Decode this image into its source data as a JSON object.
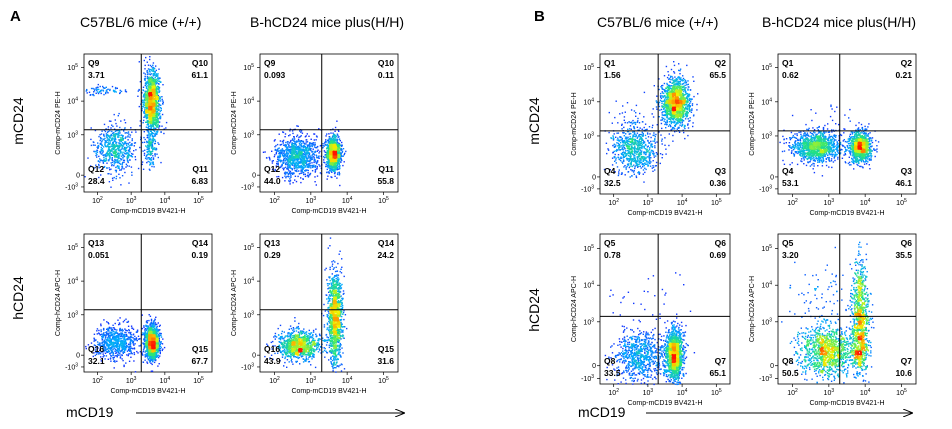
{
  "panels": [
    {
      "letter": "A"
    },
    {
      "letter": "B"
    }
  ],
  "column_titles": {
    "a_left": "C57BL/6 mice (+/+)",
    "a_right": "B-hCD24 mice plus(H/H)",
    "b_left": "C57BL/6 mice (+/+)",
    "b_right": "B-hCD24 mice plus(H/H)"
  },
  "row_labels": {
    "a_top": "mCD24",
    "a_bottom": "hCD24",
    "b_top": "mCD24",
    "b_bottom": "hCD24"
  },
  "x_axis_arrow_label": {
    "a": "mCD19",
    "b": "mCD19"
  },
  "colors": {
    "density_low": "#1010ff",
    "density_mid": "#00c8ff",
    "density_mid2": "#40ff40",
    "density_high": "#ffff00",
    "density_peak": "#ff2000",
    "gate_line": "#000000"
  },
  "chart_data": [
    {
      "type": "scatter",
      "subtype": "flow-cytometry-density",
      "panel": "A",
      "column": "C57BL/6 mice (+/+)",
      "row": "mCD24",
      "xlabel": "Comp-mCD19 BV421-H",
      "ylabel": "Comp-mCD24 PE-H",
      "x_ticks": [
        "10^2",
        "10^3",
        "10^4",
        "10^5"
      ],
      "y_ticks": [
        "-10^3",
        "0",
        "10^3",
        "10^4",
        "10^5"
      ],
      "quadrants": [
        {
          "name": "Q9",
          "value": "3.71",
          "pos": "top-left"
        },
        {
          "name": "Q10",
          "value": "61.1",
          "pos": "top-right"
        },
        {
          "name": "Q11",
          "value": "6.83",
          "pos": "bottom-right"
        },
        {
          "name": "Q12",
          "value": "28.4",
          "pos": "bottom-left"
        }
      ],
      "clusters": [
        {
          "x": 3.6,
          "y": 4.0,
          "spread": [
            0.12,
            0.45
          ],
          "weight": 0.61
        },
        {
          "x": 2.5,
          "y": 2.6,
          "spread": [
            0.3,
            0.35
          ],
          "weight": 0.28
        },
        {
          "x": 2.1,
          "y": 4.35,
          "spread": [
            0.45,
            0.07
          ],
          "weight": 0.04
        },
        {
          "x": 3.55,
          "y": 2.6,
          "spread": [
            0.1,
            0.3
          ],
          "weight": 0.07
        }
      ]
    },
    {
      "type": "scatter",
      "subtype": "flow-cytometry-density",
      "panel": "A",
      "column": "B-hCD24 mice plus(H/H)",
      "row": "mCD24",
      "xlabel": "Comp-mCD19 BV421-H",
      "ylabel": "Comp-mCD24 PE-H",
      "x_ticks": [
        "10^2",
        "10^3",
        "10^4",
        "10^5"
      ],
      "y_ticks": [
        "-10^3",
        "0",
        "10^3",
        "10^4",
        "10^5"
      ],
      "quadrants": [
        {
          "name": "Q9",
          "value": "0.093",
          "pos": "top-left"
        },
        {
          "name": "Q10",
          "value": "0.11",
          "pos": "top-right"
        },
        {
          "name": "Q11",
          "value": "55.8",
          "pos": "bottom-right"
        },
        {
          "name": "Q12",
          "value": "44.0",
          "pos": "bottom-left"
        }
      ],
      "clusters": [
        {
          "x": 2.6,
          "y": 2.4,
          "spread": [
            0.3,
            0.3
          ],
          "weight": 0.44
        },
        {
          "x": 3.6,
          "y": 2.45,
          "spread": [
            0.1,
            0.25
          ],
          "weight": 0.56
        }
      ]
    },
    {
      "type": "scatter",
      "subtype": "flow-cytometry-density",
      "panel": "A",
      "column": "C57BL/6 mice (+/+)",
      "row": "hCD24",
      "xlabel": "Comp-mCD19 BV421-H",
      "ylabel": "Comp-hCD24 APC-H",
      "x_ticks": [
        "10^2",
        "10^3",
        "10^4",
        "10^5"
      ],
      "y_ticks": [
        "-10^3",
        "0",
        "10^3",
        "10^4",
        "10^5"
      ],
      "quadrants": [
        {
          "name": "Q13",
          "value": "0.051",
          "pos": "top-left"
        },
        {
          "name": "Q14",
          "value": "0.19",
          "pos": "top-right"
        },
        {
          "name": "Q15",
          "value": "67.7",
          "pos": "bottom-right"
        },
        {
          "name": "Q16",
          "value": "32.1",
          "pos": "bottom-left"
        }
      ],
      "clusters": [
        {
          "x": 2.55,
          "y": 2.2,
          "spread": [
            0.32,
            0.25
          ],
          "weight": 0.32
        },
        {
          "x": 3.6,
          "y": 2.2,
          "spread": [
            0.1,
            0.25
          ],
          "weight": 0.68
        }
      ]
    },
    {
      "type": "scatter",
      "subtype": "flow-cytometry-density",
      "panel": "A",
      "column": "B-hCD24 mice plus(H/H)",
      "row": "hCD24",
      "xlabel": "Comp-mCD19 BV421-H",
      "ylabel": "Comp-hCD24 APC-H",
      "x_ticks": [
        "10^2",
        "10^3",
        "10^4",
        "10^5"
      ],
      "y_ticks": [
        "-10^3",
        "0",
        "10^3",
        "10^4",
        "10^5"
      ],
      "quadrants": [
        {
          "name": "Q13",
          "value": "0.29",
          "pos": "top-left"
        },
        {
          "name": "Q14",
          "value": "24.2",
          "pos": "top-right"
        },
        {
          "name": "Q15",
          "value": "31.6",
          "pos": "bottom-right"
        },
        {
          "name": "Q16",
          "value": "43.9",
          "pos": "bottom-left"
        }
      ],
      "clusters": [
        {
          "x": 2.65,
          "y": 2.1,
          "spread": [
            0.3,
            0.22
          ],
          "weight": 0.44
        },
        {
          "x": 3.65,
          "y": 2.9,
          "spread": [
            0.1,
            0.7
          ],
          "weight": 0.56
        }
      ]
    },
    {
      "type": "scatter",
      "subtype": "flow-cytometry-density",
      "panel": "B",
      "column": "C57BL/6 mice (+/+)",
      "row": "mCD24",
      "xlabel": "Comp-mCD19 BV421-H",
      "ylabel": "Comp-mCD24 PE-H",
      "x_ticks": [
        "10^2",
        "10^3",
        "10^4",
        "10^5"
      ],
      "y_ticks": [
        "-10^3",
        "0",
        "10^3",
        "10^4",
        "10^5"
      ],
      "quadrants": [
        {
          "name": "Q1",
          "value": "1.56",
          "pos": "top-left"
        },
        {
          "name": "Q2",
          "value": "65.5",
          "pos": "top-right"
        },
        {
          "name": "Q3",
          "value": "0.36",
          "pos": "bottom-right"
        },
        {
          "name": "Q4",
          "value": "32.5",
          "pos": "bottom-left"
        }
      ],
      "clusters": [
        {
          "x": 3.8,
          "y": 4.0,
          "spread": [
            0.2,
            0.35
          ],
          "weight": 0.655
        },
        {
          "x": 2.6,
          "y": 2.6,
          "spread": [
            0.32,
            0.35
          ],
          "weight": 0.325
        },
        {
          "x": 2.5,
          "y": 3.5,
          "spread": [
            0.4,
            0.35
          ],
          "weight": 0.02
        }
      ]
    },
    {
      "type": "scatter",
      "subtype": "flow-cytometry-density",
      "panel": "B",
      "column": "B-hCD24 mice plus(H/H)",
      "row": "mCD24",
      "xlabel": "Comp-mCD19 BV421-H",
      "ylabel": "Comp-mCD24 PE-H",
      "x_ticks": [
        "10^2",
        "10^3",
        "10^4",
        "10^5"
      ],
      "y_ticks": [
        "-10^3",
        "0",
        "10^3",
        "10^4",
        "10^5"
      ],
      "quadrants": [
        {
          "name": "Q1",
          "value": "0.62",
          "pos": "top-left"
        },
        {
          "name": "Q2",
          "value": "0.21",
          "pos": "top-right"
        },
        {
          "name": "Q3",
          "value": "46.1",
          "pos": "bottom-right"
        },
        {
          "name": "Q4",
          "value": "53.1",
          "pos": "bottom-left"
        }
      ],
      "clusters": [
        {
          "x": 2.65,
          "y": 2.7,
          "spread": [
            0.35,
            0.22
          ],
          "weight": 0.53
        },
        {
          "x": 3.85,
          "y": 2.7,
          "spread": [
            0.15,
            0.22
          ],
          "weight": 0.46
        },
        {
          "x": 3.0,
          "y": 3.6,
          "spread": [
            0.5,
            0.3
          ],
          "weight": 0.01
        }
      ]
    },
    {
      "type": "scatter",
      "subtype": "flow-cytometry-density",
      "panel": "B",
      "column": "C57BL/6 mice (+/+)",
      "row": "hCD24",
      "xlabel": "Comp-mCD19 BV421-H",
      "ylabel": "Comp-hCD24 APC-H",
      "x_ticks": [
        "10^2",
        "10^3",
        "10^4",
        "10^5"
      ],
      "y_ticks": [
        "-10^3",
        "0",
        "10^3",
        "10^4",
        "10^5"
      ],
      "quadrants": [
        {
          "name": "Q5",
          "value": "0.78",
          "pos": "top-left"
        },
        {
          "name": "Q6",
          "value": "0.69",
          "pos": "top-right"
        },
        {
          "name": "Q7",
          "value": "65.1",
          "pos": "bottom-right"
        },
        {
          "name": "Q8",
          "value": "33.5",
          "pos": "bottom-left"
        }
      ],
      "clusters": [
        {
          "x": 2.75,
          "y": 2.1,
          "spread": [
            0.38,
            0.35
          ],
          "weight": 0.335
        },
        {
          "x": 3.75,
          "y": 2.1,
          "spread": [
            0.13,
            0.35
          ],
          "weight": 0.65
        },
        {
          "x": 3.0,
          "y": 3.5,
          "spread": [
            0.6,
            0.4
          ],
          "weight": 0.015
        }
      ]
    },
    {
      "type": "scatter",
      "subtype": "flow-cytometry-density",
      "panel": "B",
      "column": "B-hCD24 mice plus(H/H)",
      "row": "hCD24",
      "xlabel": "Comp-mCD19 BV421-H",
      "ylabel": "Comp-hCD24 APC-H",
      "x_ticks": [
        "10^2",
        "10^3",
        "10^4",
        "10^5"
      ],
      "y_ticks": [
        "-10^3",
        "0",
        "10^3",
        "10^4",
        "10^5"
      ],
      "quadrants": [
        {
          "name": "Q5",
          "value": "3.20",
          "pos": "top-left"
        },
        {
          "name": "Q6",
          "value": "35.5",
          "pos": "top-right"
        },
        {
          "name": "Q7",
          "value": "10.6",
          "pos": "bottom-right"
        },
        {
          "name": "Q8",
          "value": "50.5",
          "pos": "bottom-left"
        }
      ],
      "clusters": [
        {
          "x": 2.95,
          "y": 2.2,
          "spread": [
            0.4,
            0.35
          ],
          "weight": 0.505
        },
        {
          "x": 3.85,
          "y": 3.2,
          "spread": [
            0.12,
            0.75
          ],
          "weight": 0.355
        },
        {
          "x": 3.85,
          "y": 2.2,
          "spread": [
            0.12,
            0.3
          ],
          "weight": 0.106
        },
        {
          "x": 2.8,
          "y": 3.8,
          "spread": [
            0.4,
            0.4
          ],
          "weight": 0.032
        }
      ]
    }
  ]
}
